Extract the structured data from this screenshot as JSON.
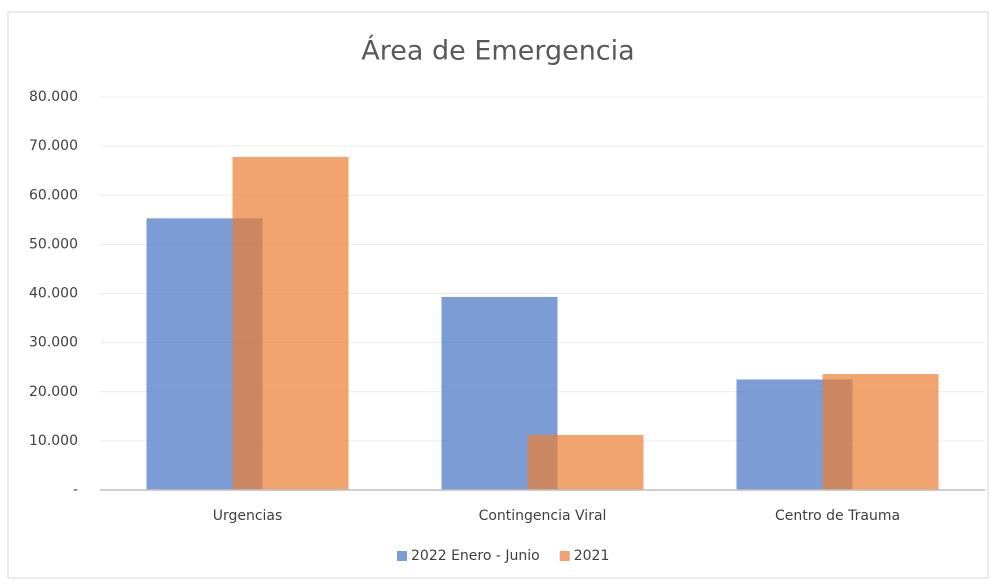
{
  "chart_data": {
    "type": "bar",
    "title": "Área de Emergencia",
    "categories": [
      "Urgencias",
      "Contingencia Viral",
      "Centro de Trauma"
    ],
    "series": [
      {
        "name": "2022 Enero - Junio",
        "color": "#4472c4",
        "values": [
          55300,
          39300,
          22500
        ]
      },
      {
        "name": "2021",
        "color": "#ed7d31",
        "values": [
          67800,
          11200,
          23600
        ]
      }
    ],
    "ylim": [
      0,
      80000
    ],
    "yticks": [
      {
        "value": 0,
        "label": "-"
      },
      {
        "value": 10000,
        "label": "10.000"
      },
      {
        "value": 20000,
        "label": "20.000"
      },
      {
        "value": 30000,
        "label": "30.000"
      },
      {
        "value": 40000,
        "label": "40.000"
      },
      {
        "value": 50000,
        "label": "50.000"
      },
      {
        "value": 60000,
        "label": "60.000"
      },
      {
        "value": 70000,
        "label": "70.000"
      },
      {
        "value": 80000,
        "label": "80.000"
      }
    ],
    "grid": true,
    "legend": "bottom"
  }
}
